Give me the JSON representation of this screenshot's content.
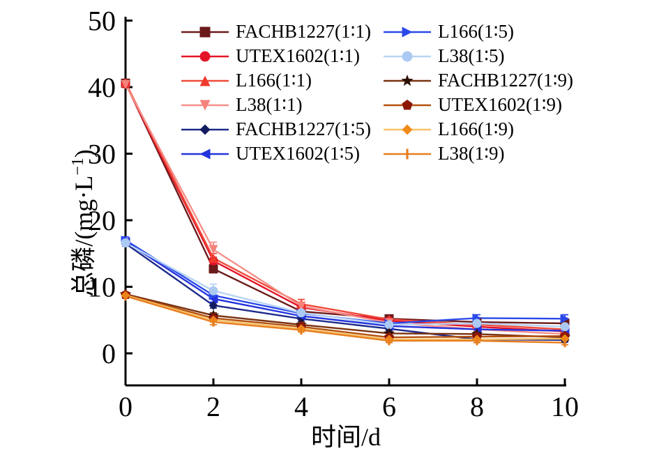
{
  "chart_data": {
    "type": "line",
    "title": "",
    "xlabel": "时间/d",
    "ylabel": "总磷/(mg·L⁻¹)",
    "x": [
      0,
      2,
      4,
      6,
      8,
      10
    ],
    "xlim": [
      0,
      10
    ],
    "ylim": [
      0,
      50
    ],
    "xticks": [
      "0",
      "2",
      "4",
      "6",
      "8",
      "10"
    ],
    "yticks": [
      "0",
      "10",
      "20",
      "30",
      "40",
      "50"
    ],
    "grid": false,
    "error_bars": true,
    "legend_position": "top-center-inside, two columns, no frame",
    "series": [
      {
        "name": "FACHB1227(1∶1)",
        "marker": "square",
        "color": "#6b1a1a",
        "line_color": "#6b1a1a",
        "values": [
          40.6,
          12.7,
          6.3,
          5.2,
          4.7,
          4.5
        ],
        "errors": [
          0.5,
          0.6,
          0.5,
          0.4,
          0.4,
          0.4
        ]
      },
      {
        "name": "UTEX1602(1∶1)",
        "marker": "circle",
        "color": "#e51328",
        "line_color": "#e51328",
        "values": [
          40.5,
          13.9,
          6.9,
          4.9,
          4.0,
          3.3
        ],
        "errors": [
          0.4,
          0.5,
          0.6,
          0.4,
          0.3,
          0.4
        ]
      },
      {
        "name": "L166(1∶1)",
        "marker": "triangle-up",
        "color": "#f03a2e",
        "line_color": "#f04a3a",
        "values": [
          40.7,
          14.3,
          7.4,
          5.1,
          4.3,
          3.6
        ],
        "errors": [
          0.4,
          0.7,
          0.7,
          0.4,
          0.4,
          0.3
        ]
      },
      {
        "name": "L38(1∶1)",
        "marker": "triangle-down",
        "color": "#f5837b",
        "line_color": "#f5908a",
        "values": [
          40.4,
          15.6,
          7.1,
          4.6,
          3.6,
          2.9
        ],
        "errors": [
          0.5,
          1.1,
          0.6,
          0.4,
          0.3,
          0.4
        ]
      },
      {
        "name": "FACHB1227(1∶5)",
        "marker": "diamond",
        "color": "#141b60",
        "line_color": "#1c2a8c",
        "values": [
          16.5,
          7.2,
          5.2,
          3.7,
          2.1,
          2.0
        ],
        "errors": [
          0.4,
          0.4,
          0.4,
          0.3,
          0.3,
          0.3
        ]
      },
      {
        "name": "UTEX1602(1∶5)",
        "marker": "triangle-left",
        "color": "#2433dd",
        "line_color": "#2433dd",
        "values": [
          16.8,
          8.2,
          5.6,
          4.1,
          3.6,
          3.4
        ],
        "errors": [
          0.4,
          0.5,
          0.4,
          0.4,
          0.3,
          0.3
        ]
      },
      {
        "name": "L166(1∶5)",
        "marker": "triangle-right",
        "color": "#2b49e9",
        "line_color": "#2b49e9",
        "values": [
          17.0,
          8.7,
          6.0,
          4.5,
          5.3,
          5.2
        ],
        "errors": [
          0.5,
          0.5,
          0.5,
          0.4,
          0.5,
          0.6
        ]
      },
      {
        "name": "L38(1∶5)",
        "marker": "circle",
        "color": "#abcaf3",
        "line_color": "#b9d4f5",
        "values": [
          16.6,
          9.4,
          6.1,
          4.3,
          4.5,
          4.0
        ],
        "errors": [
          0.4,
          1.0,
          0.6,
          0.4,
          0.5,
          0.4
        ]
      },
      {
        "name": "FACHB1227(1∶9)",
        "marker": "star",
        "color": "#2e1106",
        "line_color": "#7a3110",
        "values": [
          8.9,
          5.7,
          4.3,
          3.0,
          2.9,
          2.4
        ],
        "errors": [
          0.3,
          0.4,
          0.4,
          0.3,
          0.4,
          0.3
        ]
      },
      {
        "name": "UTEX1602(1∶9)",
        "marker": "pentagon",
        "color": "#8d1706",
        "line_color": "#b4500e",
        "values": [
          8.8,
          5.3,
          4.0,
          2.4,
          2.5,
          2.6
        ],
        "errors": [
          0.3,
          0.4,
          0.3,
          0.3,
          0.3,
          0.3
        ]
      },
      {
        "name": "L166(1∶9)",
        "marker": "diamond",
        "color": "#f18a18",
        "line_color": "#f6c269",
        "values": [
          8.7,
          5.0,
          3.7,
          2.1,
          2.1,
          2.2
        ],
        "errors": [
          0.3,
          0.3,
          0.3,
          0.3,
          0.3,
          0.3
        ]
      },
      {
        "name": "L38(1∶9)",
        "marker": "vbar",
        "color": "#e87d1e",
        "line_color": "#e87d1e",
        "values": [
          8.6,
          4.7,
          3.5,
          1.9,
          1.9,
          1.6
        ],
        "errors": [
          0.3,
          0.4,
          0.3,
          0.3,
          0.3,
          0.3
        ]
      }
    ]
  },
  "labels": {
    "y_main": "总磷/(mg·L",
    "y_sup": "−1",
    "y_end": ")",
    "x": "时间/d"
  },
  "style": {
    "axis_color": "#000000",
    "background": "#ffffff"
  }
}
